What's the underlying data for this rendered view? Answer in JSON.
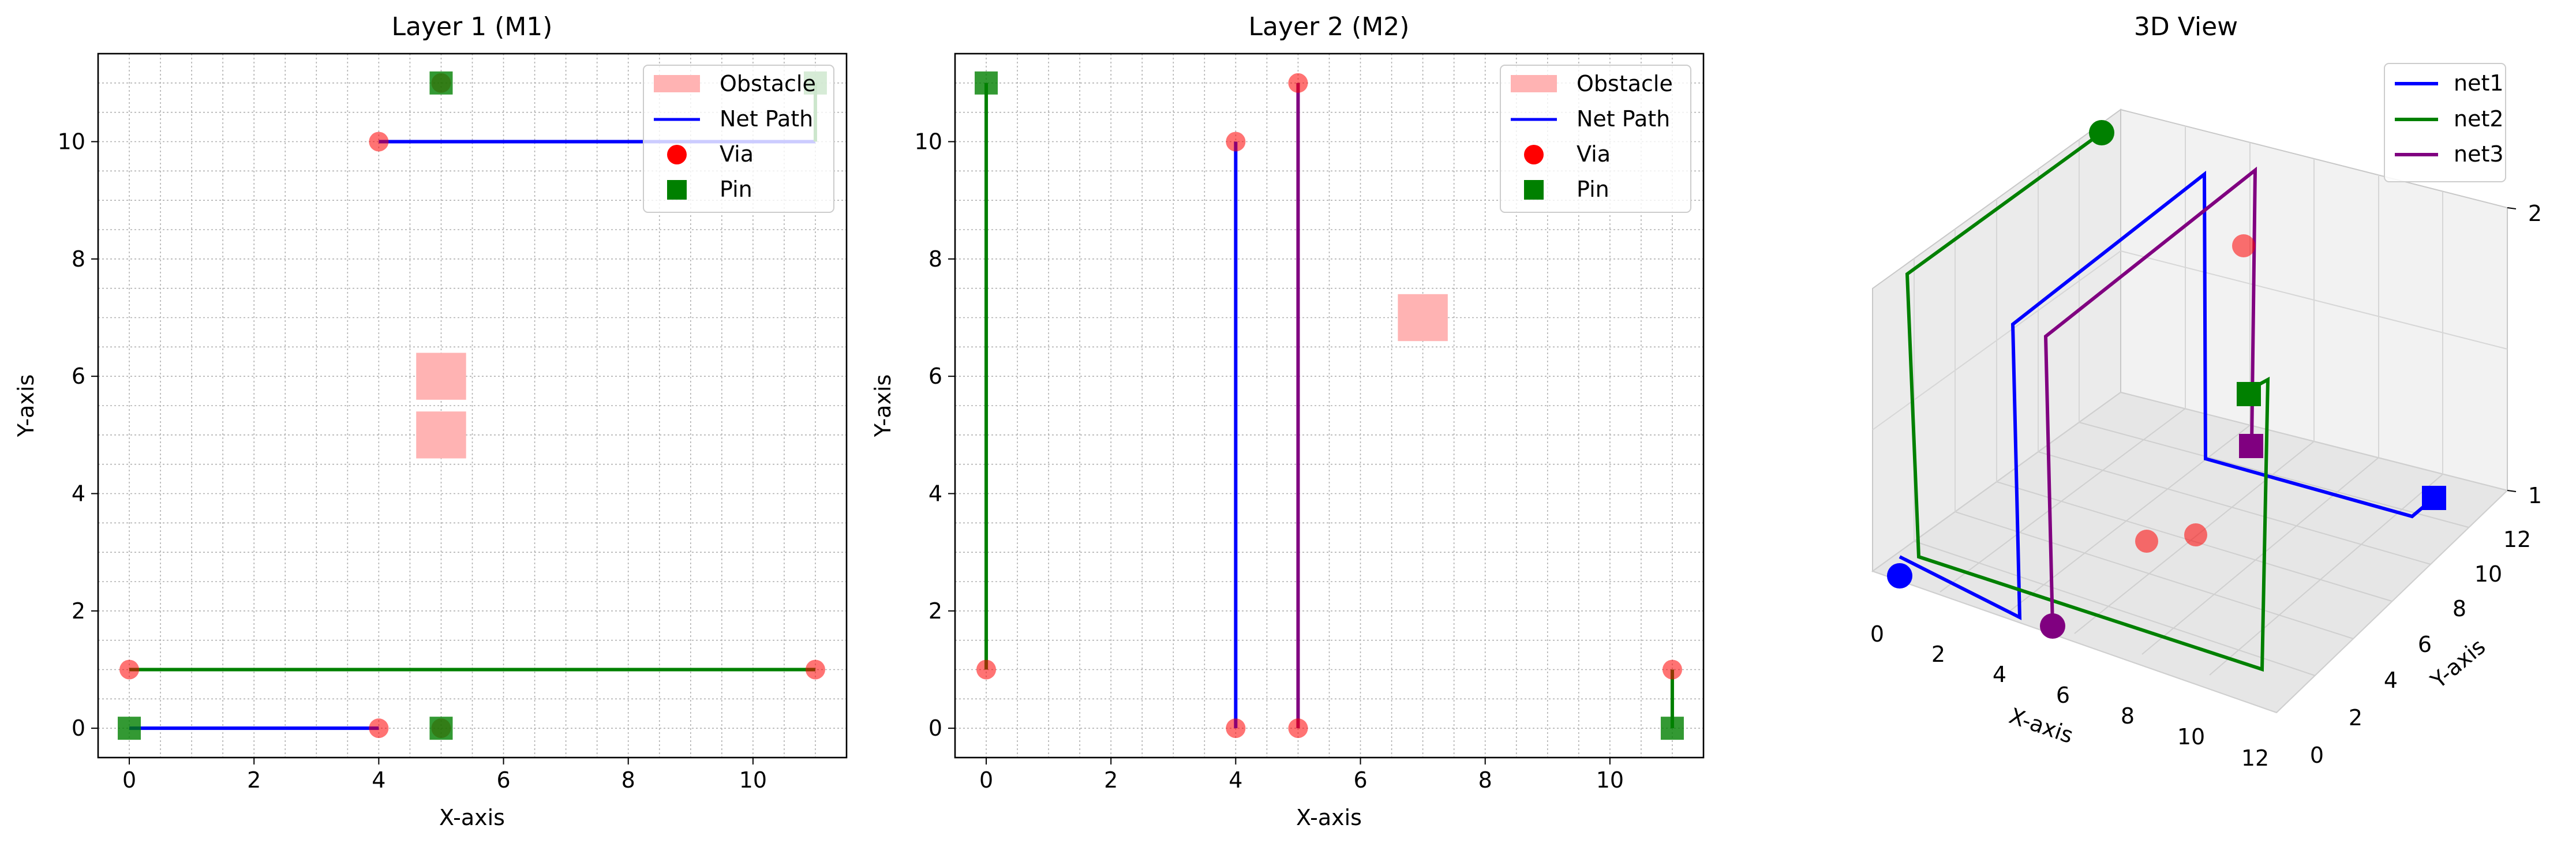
{
  "chart_data": [
    {
      "type": "scatter",
      "title": "Layer 1 (M1)",
      "xlabel": "X-axis",
      "ylabel": "Y-axis",
      "xlim": [
        -0.5,
        11.5
      ],
      "ylim": [
        -0.5,
        11.5
      ],
      "xticks": [
        0,
        2,
        4,
        6,
        8,
        10
      ],
      "yticks": [
        0,
        2,
        4,
        6,
        8,
        10
      ],
      "grid": true,
      "legend_position": "top-right",
      "legend": [
        "Obstacle",
        "Net Path",
        "Via",
        "Pin"
      ],
      "obstacles": [
        [
          5,
          6
        ],
        [
          5,
          5
        ]
      ],
      "paths": [
        {
          "net": "net1",
          "color": "#0000ff",
          "points": [
            [
              4,
              10
            ],
            [
              11,
              10
            ]
          ]
        },
        {
          "net": "net2",
          "color": "#008000",
          "points": [
            [
              0,
              1
            ],
            [
              11,
              1
            ]
          ]
        },
        {
          "net": "net1",
          "color": "#0000ff",
          "points": [
            [
              0,
              0
            ],
            [
              4,
              0
            ]
          ]
        },
        {
          "net": "net2",
          "color": "#008000",
          "points": [
            [
              11,
              11
            ],
            [
              11,
              10
            ]
          ]
        }
      ],
      "vias": [
        [
          4,
          10
        ],
        [
          0,
          1
        ],
        [
          11,
          1
        ],
        [
          4,
          0
        ],
        [
          5,
          11
        ],
        [
          5,
          0
        ]
      ],
      "pins": [
        [
          5,
          11
        ],
        [
          0,
          0
        ],
        [
          5,
          0
        ],
        [
          11,
          11
        ]
      ]
    },
    {
      "type": "scatter",
      "title": "Layer 2 (M2)",
      "xlabel": "X-axis",
      "ylabel": "Y-axis",
      "xlim": [
        -0.5,
        11.5
      ],
      "ylim": [
        -0.5,
        11.5
      ],
      "xticks": [
        0,
        2,
        4,
        6,
        8,
        10
      ],
      "yticks": [
        0,
        2,
        4,
        6,
        8,
        10
      ],
      "grid": true,
      "legend_position": "top-right",
      "legend": [
        "Obstacle",
        "Net Path",
        "Via",
        "Pin"
      ],
      "obstacles": [
        [
          7,
          7
        ]
      ],
      "paths": [
        {
          "net": "net2",
          "color": "#008000",
          "points": [
            [
              0,
              11
            ],
            [
              0,
              1
            ]
          ]
        },
        {
          "net": "net1",
          "color": "#0000ff",
          "points": [
            [
              4,
              10
            ],
            [
              4,
              0
            ]
          ]
        },
        {
          "net": "net3",
          "color": "#800080",
          "points": [
            [
              5,
              11
            ],
            [
              5,
              0
            ]
          ]
        },
        {
          "net": "net2",
          "color": "#008000",
          "points": [
            [
              11,
              1
            ],
            [
              11,
              0
            ]
          ]
        }
      ],
      "vias": [
        [
          0,
          1
        ],
        [
          4,
          10
        ],
        [
          4,
          0
        ],
        [
          5,
          11
        ],
        [
          5,
          0
        ],
        [
          11,
          1
        ]
      ],
      "pins": [
        [
          0,
          11
        ],
        [
          11,
          0
        ]
      ]
    },
    {
      "type": "line3d",
      "title": "3D View",
      "xlabel": "X-axis",
      "ylabel": "Y-axis",
      "xticks": [
        0,
        2,
        4,
        6,
        8,
        10,
        12
      ],
      "yticks": [
        0,
        2,
        4,
        6,
        8,
        10,
        12
      ],
      "zticks": [
        1,
        2
      ],
      "legend_position": "top-right",
      "series": [
        {
          "name": "net1",
          "color": "#0000ff"
        },
        {
          "name": "net2",
          "color": "#008000"
        },
        {
          "name": "net3",
          "color": "#800080"
        }
      ]
    }
  ]
}
